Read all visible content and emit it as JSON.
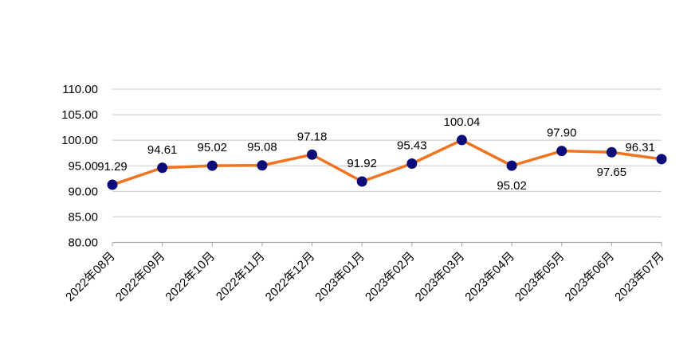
{
  "chart_data": {
    "type": "line",
    "categories": [
      "2022年08月",
      "2022年09月",
      "2022年10月",
      "2022年11月",
      "2022年12月",
      "2023年01月",
      "2023年02月",
      "2023年03月",
      "2023年04月",
      "2023年05月",
      "2023年06月",
      "2023年07月"
    ],
    "values": [
      91.29,
      94.61,
      95.02,
      95.08,
      97.18,
      91.92,
      95.43,
      100.04,
      95.02,
      97.9,
      97.65,
      96.31
    ],
    "data_labels": [
      "91.29",
      "94.61",
      "95.02",
      "95.08",
      "97.18",
      "91.92",
      "95.43",
      "100.04",
      "95.02",
      "97.90",
      "97.65",
      "96.31"
    ],
    "label_positions": [
      "above",
      "above",
      "above",
      "above",
      "above",
      "above",
      "above",
      "above",
      "below",
      "above",
      "below",
      "left"
    ],
    "ylim": [
      80,
      110
    ],
    "yticks": [
      "80.00",
      "85.00",
      "90.00",
      "95.00",
      "100.00",
      "105.00",
      "110.00"
    ],
    "title": "",
    "xlabel": "",
    "ylabel": "",
    "grid": "horizontal",
    "legend": "none",
    "colors": {
      "line": "#f07320",
      "marker": "#0b0b7a",
      "grid": "#c8c8c8",
      "axis": "#a6a6a6",
      "text": "#000000"
    }
  }
}
